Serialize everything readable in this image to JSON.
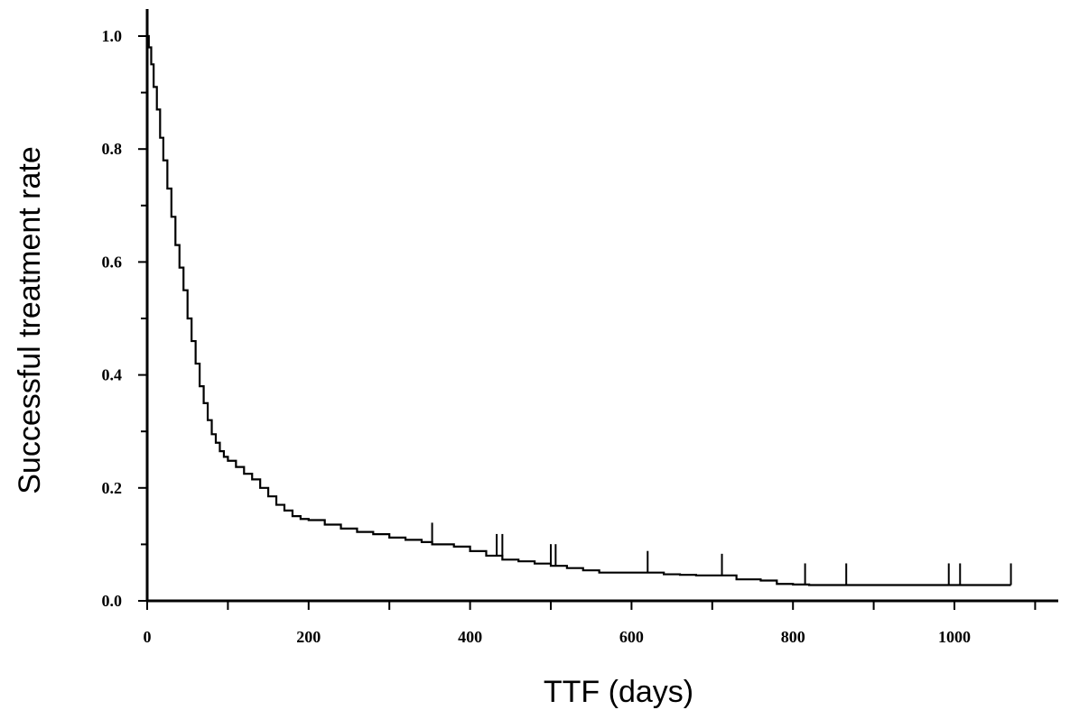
{
  "chart_data": {
    "type": "line",
    "subtype": "kaplan-meier step curve with censoring marks",
    "title": "",
    "xlabel": "TTF (days)",
    "ylabel": "Successful treatment rate",
    "xlim": [
      0,
      1150
    ],
    "ylim": [
      0,
      1.05
    ],
    "x_ticks": [
      0,
      200,
      400,
      600,
      800,
      1000
    ],
    "x_minor_ticks": [
      100,
      300,
      500,
      700,
      900,
      1100
    ],
    "y_ticks": [
      "0.0",
      "0.2",
      "0.4",
      "0.6",
      "0.8",
      "1.0"
    ],
    "y_minor_ticks": [
      0.1,
      0.3,
      0.5,
      0.7,
      0.9
    ],
    "grid": false,
    "legend": "none",
    "line_color": "#000000",
    "series": [
      {
        "x": [
          0,
          2,
          5,
          8,
          12,
          16,
          20,
          25,
          30,
          35,
          40,
          45,
          50,
          55,
          60,
          65,
          70,
          75,
          80,
          85,
          90,
          95,
          100,
          110,
          120,
          130,
          140,
          150,
          160,
          170,
          180,
          190,
          200,
          220,
          240,
          260,
          280,
          300,
          320,
          340,
          353,
          380,
          400,
          420,
          440,
          460,
          480,
          500,
          520,
          540,
          560,
          580,
          600,
          620,
          640,
          660,
          680,
          700,
          712,
          730,
          760,
          780,
          800,
          820,
          850,
          880,
          920,
          960,
          1000,
          1040,
          1070
        ],
        "y": [
          1.0,
          0.98,
          0.95,
          0.91,
          0.87,
          0.82,
          0.78,
          0.73,
          0.68,
          0.63,
          0.59,
          0.55,
          0.5,
          0.46,
          0.42,
          0.38,
          0.35,
          0.32,
          0.295,
          0.28,
          0.265,
          0.255,
          0.248,
          0.237,
          0.225,
          0.215,
          0.2,
          0.185,
          0.17,
          0.16,
          0.15,
          0.145,
          0.143,
          0.135,
          0.128,
          0.122,
          0.118,
          0.112,
          0.108,
          0.104,
          0.1,
          0.096,
          0.088,
          0.08,
          0.073,
          0.07,
          0.066,
          0.062,
          0.058,
          0.054,
          0.05,
          0.05,
          0.05,
          0.05,
          0.047,
          0.046,
          0.045,
          0.045,
          0.045,
          0.038,
          0.036,
          0.03,
          0.029,
          0.028,
          0.028,
          0.028,
          0.028,
          0.028,
          0.028,
          0.028,
          0.028
        ]
      }
    ],
    "censor_marks": [
      {
        "x": 353,
        "y": 0.1
      },
      {
        "x": 433,
        "y": 0.08
      },
      {
        "x": 440,
        "y": 0.08
      },
      {
        "x": 500,
        "y": 0.062
      },
      {
        "x": 506,
        "y": 0.062
      },
      {
        "x": 620,
        "y": 0.05
      },
      {
        "x": 712,
        "y": 0.045
      },
      {
        "x": 815,
        "y": 0.028
      },
      {
        "x": 866,
        "y": 0.028
      },
      {
        "x": 993,
        "y": 0.028
      },
      {
        "x": 1007,
        "y": 0.028
      },
      {
        "x": 1070,
        "y": 0.028
      }
    ]
  }
}
